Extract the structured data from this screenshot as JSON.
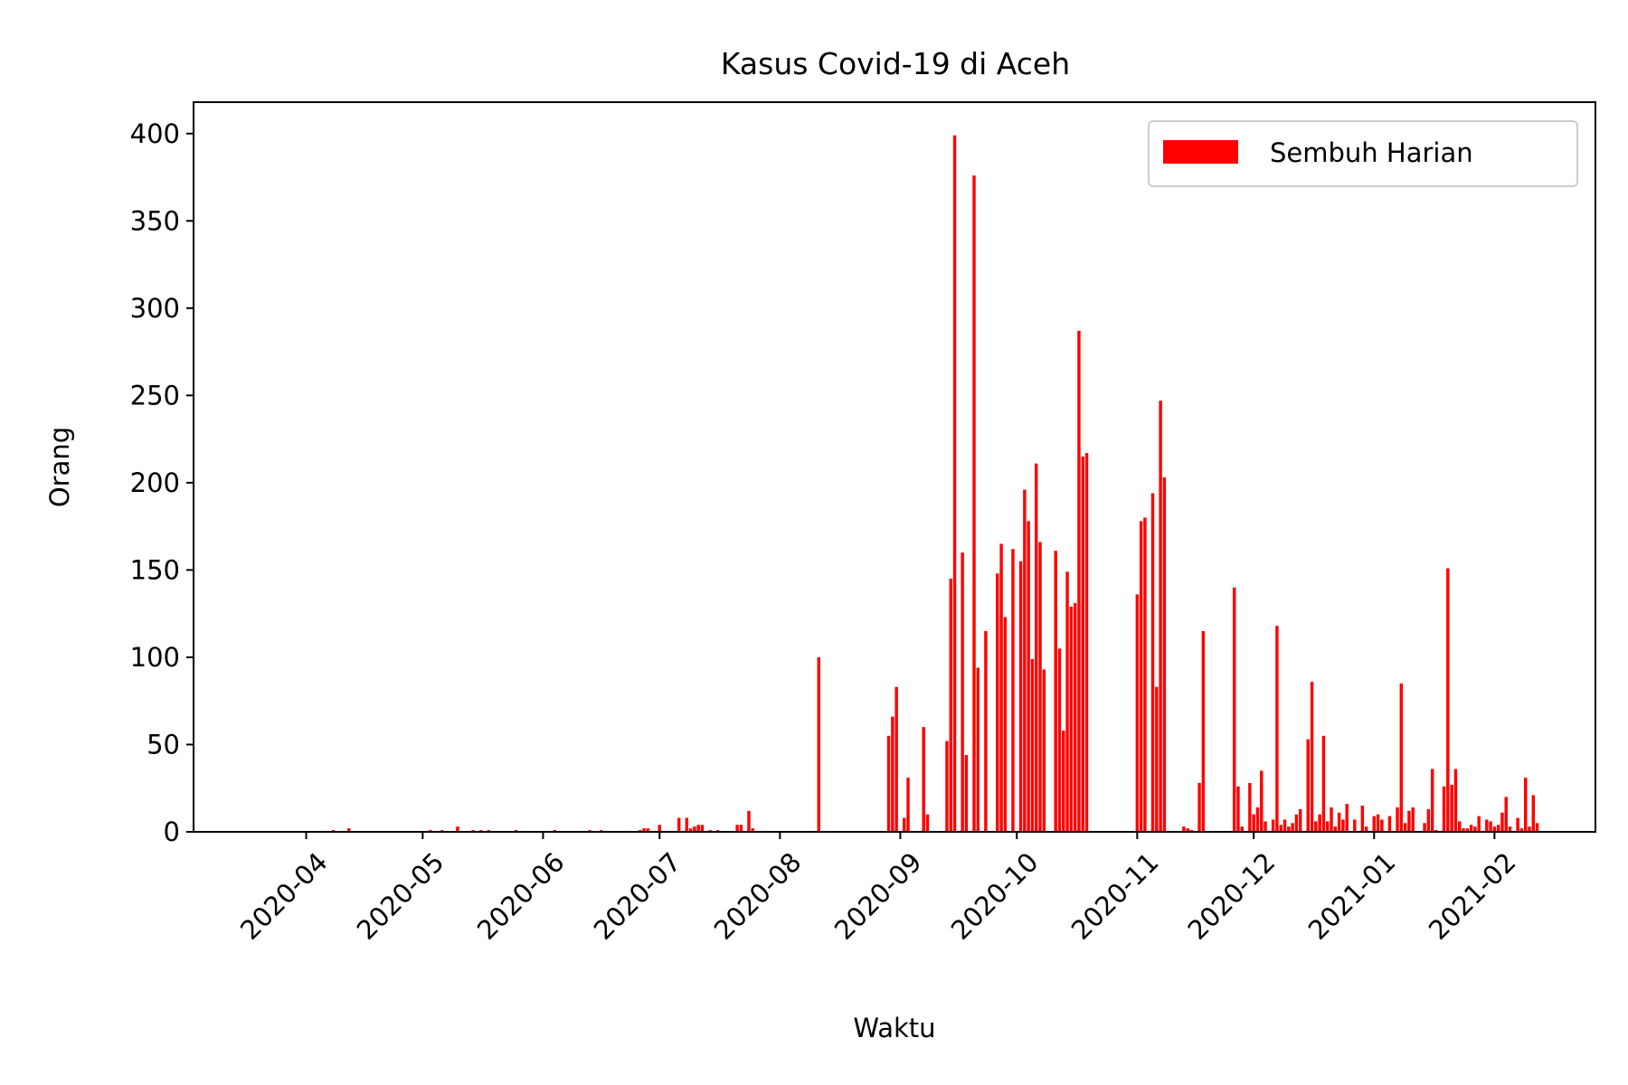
{
  "chart_data": {
    "type": "bar",
    "title": "Kasus Covid-19 di Aceh",
    "xlabel": "Waktu",
    "ylabel": "Orang",
    "ylim": [
      0,
      418
    ],
    "xlim": [
      "2020-03-03",
      "2021-02-27"
    ],
    "yticks": [
      0,
      50,
      100,
      150,
      200,
      250,
      300,
      350,
      400
    ],
    "xticks": [
      "2020-04",
      "2020-05",
      "2020-06",
      "2020-07",
      "2020-08",
      "2020-09",
      "2020-10",
      "2020-11",
      "2020-12",
      "2021-01",
      "2021-02"
    ],
    "grid": false,
    "legend": "top-right",
    "bar_color": "#ff0000",
    "series": [
      {
        "name": "Sembuh Harian",
        "points": [
          [
            "2020-04-08",
            1
          ],
          [
            "2020-04-12",
            2
          ],
          [
            "2020-05-03",
            1
          ],
          [
            "2020-05-06",
            1
          ],
          [
            "2020-05-10",
            3
          ],
          [
            "2020-05-14",
            1
          ],
          [
            "2020-05-16",
            1
          ],
          [
            "2020-05-18",
            1
          ],
          [
            "2020-05-25",
            1
          ],
          [
            "2020-06-04",
            1
          ],
          [
            "2020-06-13",
            1
          ],
          [
            "2020-06-16",
            1
          ],
          [
            "2020-06-26",
            1
          ],
          [
            "2020-06-27",
            2
          ],
          [
            "2020-06-28",
            2
          ],
          [
            "2020-07-01",
            4
          ],
          [
            "2020-07-06",
            8
          ],
          [
            "2020-07-08",
            8
          ],
          [
            "2020-07-09",
            2
          ],
          [
            "2020-07-10",
            3
          ],
          [
            "2020-07-11",
            4
          ],
          [
            "2020-07-12",
            4
          ],
          [
            "2020-07-14",
            1
          ],
          [
            "2020-07-16",
            1
          ],
          [
            "2020-07-21",
            4
          ],
          [
            "2020-07-22",
            4
          ],
          [
            "2020-07-24",
            12
          ],
          [
            "2020-07-25",
            2
          ],
          [
            "2020-08-11",
            100
          ],
          [
            "2020-08-29",
            55
          ],
          [
            "2020-08-30",
            66
          ],
          [
            "2020-08-31",
            83
          ],
          [
            "2020-09-02",
            8
          ],
          [
            "2020-09-03",
            31
          ],
          [
            "2020-09-07",
            60
          ],
          [
            "2020-09-08",
            10
          ],
          [
            "2020-09-13",
            52
          ],
          [
            "2020-09-14",
            145
          ],
          [
            "2020-09-15",
            399
          ],
          [
            "2020-09-17",
            160
          ],
          [
            "2020-09-18",
            44
          ],
          [
            "2020-09-20",
            376
          ],
          [
            "2020-09-21",
            94
          ],
          [
            "2020-09-23",
            115
          ],
          [
            "2020-09-26",
            148
          ],
          [
            "2020-09-27",
            165
          ],
          [
            "2020-09-28",
            123
          ],
          [
            "2020-09-30",
            162
          ],
          [
            "2020-10-02",
            155
          ],
          [
            "2020-10-03",
            196
          ],
          [
            "2020-10-04",
            178
          ],
          [
            "2020-10-05",
            99
          ],
          [
            "2020-10-06",
            211
          ],
          [
            "2020-10-07",
            166
          ],
          [
            "2020-10-08",
            93
          ],
          [
            "2020-10-11",
            161
          ],
          [
            "2020-10-12",
            105
          ],
          [
            "2020-10-13",
            58
          ],
          [
            "2020-10-14",
            149
          ],
          [
            "2020-10-15",
            129
          ],
          [
            "2020-10-16",
            131
          ],
          [
            "2020-10-17",
            287
          ],
          [
            "2020-10-18",
            215
          ],
          [
            "2020-10-19",
            217
          ],
          [
            "2020-11-01",
            136
          ],
          [
            "2020-11-02",
            178
          ],
          [
            "2020-11-03",
            180
          ],
          [
            "2020-11-05",
            194
          ],
          [
            "2020-11-06",
            83
          ],
          [
            "2020-11-07",
            247
          ],
          [
            "2020-11-08",
            203
          ],
          [
            "2020-11-13",
            3
          ],
          [
            "2020-11-14",
            2
          ],
          [
            "2020-11-15",
            1
          ],
          [
            "2020-11-17",
            28
          ],
          [
            "2020-11-18",
            115
          ],
          [
            "2020-11-26",
            140
          ],
          [
            "2020-11-27",
            26
          ],
          [
            "2020-11-28",
            3
          ],
          [
            "2020-11-30",
            28
          ],
          [
            "2020-12-01",
            10
          ],
          [
            "2020-12-02",
            14
          ],
          [
            "2020-12-03",
            35
          ],
          [
            "2020-12-04",
            6
          ],
          [
            "2020-12-06",
            7
          ],
          [
            "2020-12-07",
            118
          ],
          [
            "2020-12-08",
            4
          ],
          [
            "2020-12-09",
            7
          ],
          [
            "2020-12-10",
            3
          ],
          [
            "2020-12-11",
            5
          ],
          [
            "2020-12-12",
            10
          ],
          [
            "2020-12-13",
            13
          ],
          [
            "2020-12-15",
            53
          ],
          [
            "2020-12-16",
            86
          ],
          [
            "2020-12-17",
            6
          ],
          [
            "2020-12-18",
            10
          ],
          [
            "2020-12-19",
            55
          ],
          [
            "2020-12-20",
            6
          ],
          [
            "2020-12-21",
            14
          ],
          [
            "2020-12-22",
            3
          ],
          [
            "2020-12-23",
            11
          ],
          [
            "2020-12-24",
            7
          ],
          [
            "2020-12-25",
            16
          ],
          [
            "2020-12-27",
            7
          ],
          [
            "2020-12-29",
            15
          ],
          [
            "2020-12-30",
            3
          ],
          [
            "2021-01-01",
            9
          ],
          [
            "2021-01-02",
            10
          ],
          [
            "2021-01-03",
            7
          ],
          [
            "2021-01-05",
            9
          ],
          [
            "2021-01-07",
            14
          ],
          [
            "2021-01-08",
            85
          ],
          [
            "2021-01-09",
            5
          ],
          [
            "2021-01-10",
            12
          ],
          [
            "2021-01-11",
            14
          ],
          [
            "2021-01-14",
            5
          ],
          [
            "2021-01-15",
            13
          ],
          [
            "2021-01-16",
            36
          ],
          [
            "2021-01-17",
            1
          ],
          [
            "2021-01-19",
            26
          ],
          [
            "2021-01-20",
            151
          ],
          [
            "2021-01-21",
            27
          ],
          [
            "2021-01-22",
            36
          ],
          [
            "2021-01-23",
            6
          ],
          [
            "2021-01-24",
            2
          ],
          [
            "2021-01-25",
            2
          ],
          [
            "2021-01-26",
            4
          ],
          [
            "2021-01-27",
            3
          ],
          [
            "2021-01-28",
            9
          ],
          [
            "2021-01-30",
            7
          ],
          [
            "2021-01-31",
            6
          ],
          [
            "2021-02-01",
            3
          ],
          [
            "2021-02-02",
            4
          ],
          [
            "2021-02-03",
            11
          ],
          [
            "2021-02-04",
            20
          ],
          [
            "2021-02-05",
            3
          ],
          [
            "2021-02-07",
            8
          ],
          [
            "2021-02-08",
            2
          ],
          [
            "2021-02-09",
            31
          ],
          [
            "2021-02-10",
            3
          ],
          [
            "2021-02-11",
            21
          ],
          [
            "2021-02-12",
            5
          ]
        ]
      }
    ]
  }
}
